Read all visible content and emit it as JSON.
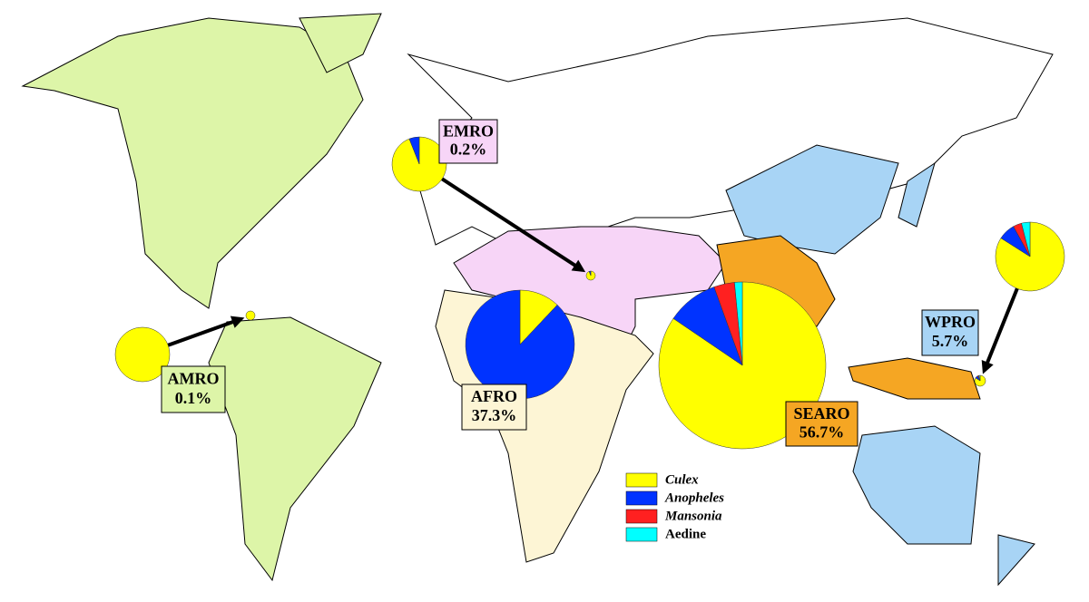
{
  "legend": [
    {
      "name": "Culex",
      "color": "#ffff00"
    },
    {
      "name": "Anopheles",
      "color": "#0033ff"
    },
    {
      "name": "Mansonia",
      "color": "#ff2020"
    },
    {
      "name": "Aedine",
      "color": "#00ffff"
    }
  ],
  "regions": [
    {
      "name": "AMRO",
      "share": "0.1%",
      "color": "#ddf5a8",
      "pie": [
        100,
        0,
        0,
        0
      ]
    },
    {
      "name": "EMRO",
      "share": "0.2%",
      "color": "#f7d5f7",
      "pie": [
        94,
        6,
        0,
        0
      ]
    },
    {
      "name": "AFRO",
      "share": "37.3%",
      "color": "#fdf5d5",
      "pie": [
        12,
        88,
        0,
        0
      ]
    },
    {
      "name": "SEARO",
      "share": "56.7%",
      "color": "#f5a623",
      "pie": [
        84.5,
        10,
        4,
        1.5
      ]
    },
    {
      "name": "WPRO",
      "share": "5.7%",
      "color": "#a8d4f5",
      "pie": [
        84,
        8,
        4,
        4
      ]
    }
  ]
}
